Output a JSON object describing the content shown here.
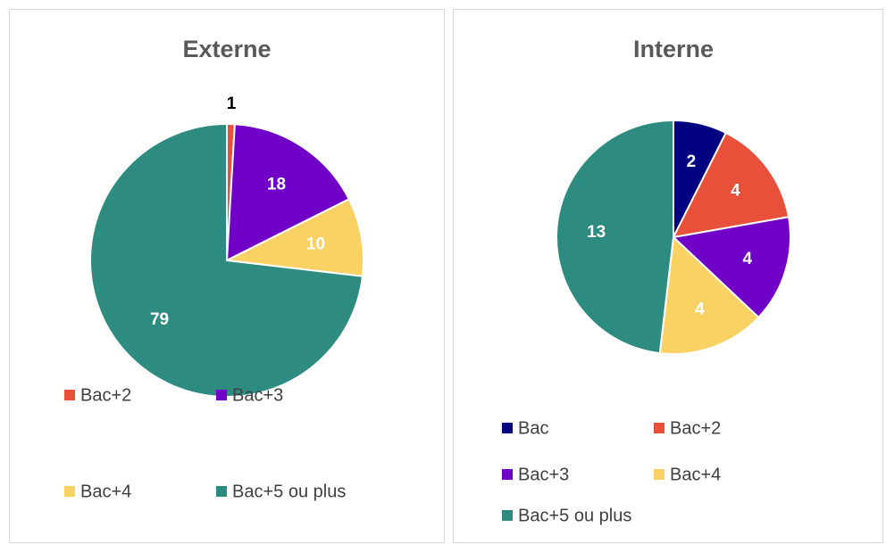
{
  "chart_data": [
    {
      "type": "pie",
      "title": "Externe",
      "categories": [
        "Bac+2",
        "Bac+3",
        "Bac+4",
        "Bac+5 ou plus"
      ],
      "values": [
        1,
        18,
        10,
        79
      ],
      "colors": [
        "#e8503a",
        "#7000c8",
        "#fad264",
        "#2e8b80"
      ]
    },
    {
      "type": "pie",
      "title": "Interne",
      "categories": [
        "Bac",
        "Bac+2",
        "Bac+3",
        "Bac+4",
        "Bac+5 ou plus"
      ],
      "values": [
        2,
        4,
        4,
        4,
        13
      ],
      "colors": [
        "#000080",
        "#e8503a",
        "#7000c8",
        "#fad264",
        "#2e8b80"
      ]
    }
  ]
}
